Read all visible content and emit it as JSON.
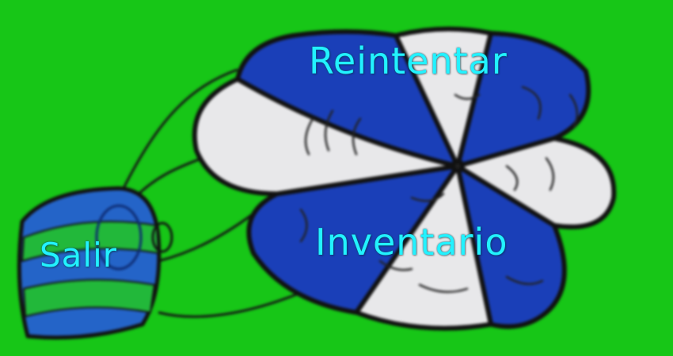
{
  "menu": {
    "retry_label": "Reintentar",
    "inventory_label": "Inventario",
    "exit_label": "Salir"
  },
  "colors": {
    "background": "#17c617",
    "blue": "#1a3fb8",
    "white": "#e8e8ea",
    "label": "#22f2ff",
    "outline": "#111111"
  }
}
